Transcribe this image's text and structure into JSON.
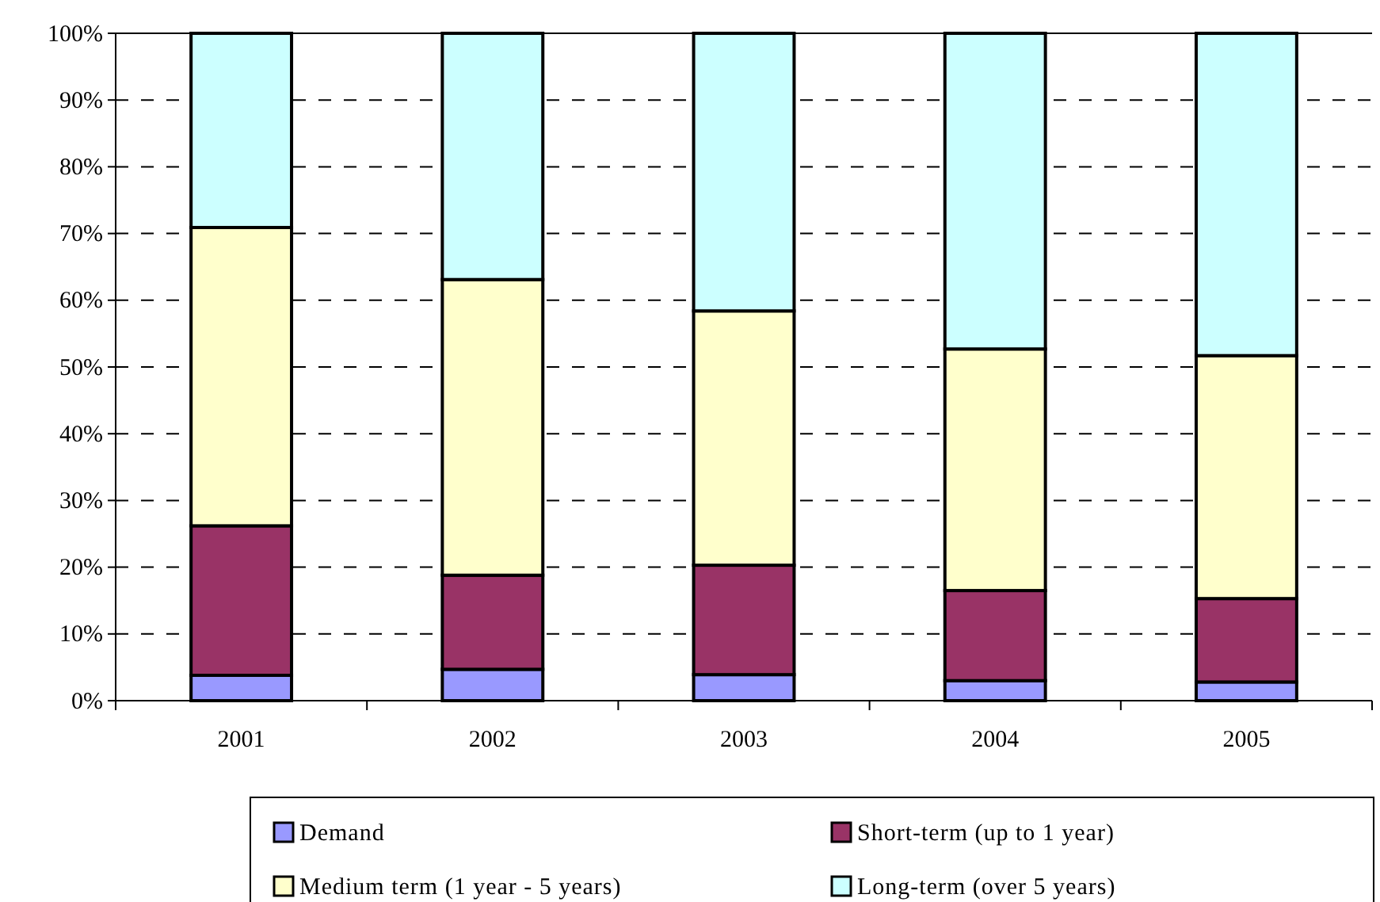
{
  "chart_data": {
    "type": "bar",
    "stacked": true,
    "categories": [
      "2001",
      "2002",
      "2003",
      "2004",
      "2005"
    ],
    "series": [
      {
        "name": "Demand",
        "color": "#9999ff",
        "values": [
          3.8,
          4.7,
          3.9,
          3.0,
          2.8
        ]
      },
      {
        "name": "Short-term (up to 1 year)",
        "color": "#993366",
        "values": [
          22.4,
          14.1,
          16.4,
          13.5,
          12.5
        ]
      },
      {
        "name": "Medium term (1 year - 5 years)",
        "color": "#ffffcc",
        "values": [
          44.7,
          44.3,
          38.1,
          36.2,
          36.4
        ]
      },
      {
        "name": "Long-term (over 5 years)",
        "color": "#ccffff",
        "values": [
          29.1,
          36.9,
          41.6,
          47.3,
          48.3
        ]
      }
    ],
    "ylim": [
      0,
      100
    ],
    "yticks": [
      {
        "value": 0,
        "label": "0%"
      },
      {
        "value": 10,
        "label": "10%"
      },
      {
        "value": 20,
        "label": "20%"
      },
      {
        "value": 30,
        "label": "30%"
      },
      {
        "value": 40,
        "label": "40%"
      },
      {
        "value": 50,
        "label": "50%"
      },
      {
        "value": 60,
        "label": "60%"
      },
      {
        "value": 70,
        "label": "70%"
      },
      {
        "value": 80,
        "label": "80%"
      },
      {
        "value": 90,
        "label": "90%"
      },
      {
        "value": 100,
        "label": "100%"
      }
    ],
    "grid": "y",
    "legend": "bottom"
  }
}
